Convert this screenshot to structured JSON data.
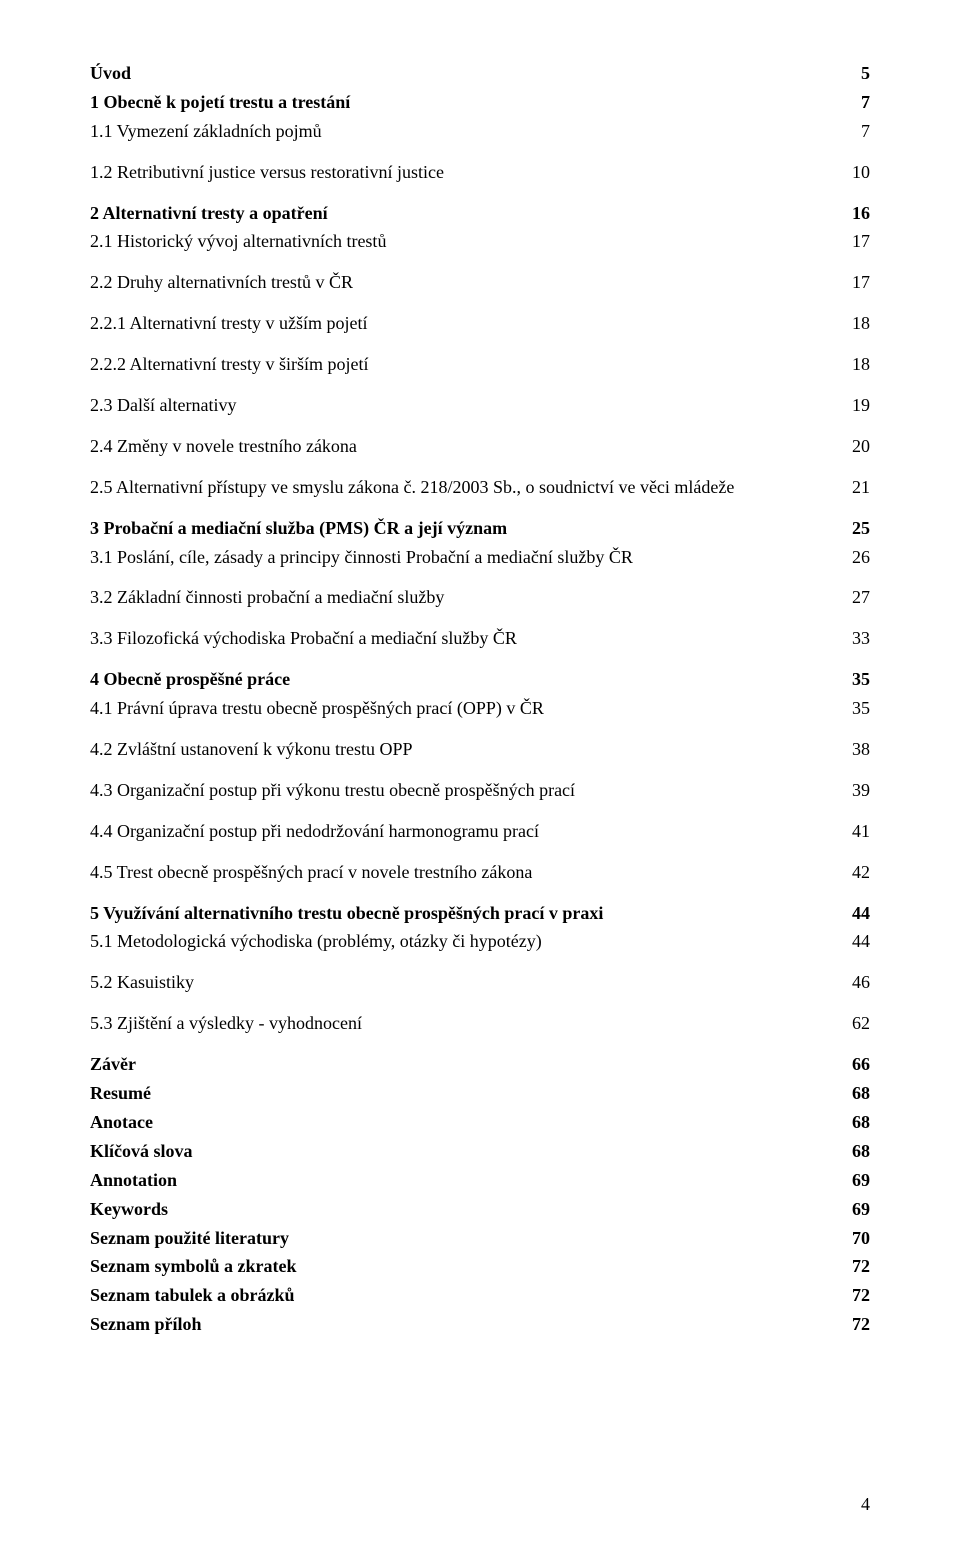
{
  "toc": [
    {
      "label": "Úvod",
      "page": "5",
      "bold": true
    },
    {
      "label": "1   Obecně k pojetí trestu a trestání",
      "page": "7",
      "bold": true
    },
    {
      "label": "1.1 Vymezení základních pojmů",
      "page": "7",
      "bold": false,
      "gapAfter": true
    },
    {
      "label": "1.2 Retributivní justice versus restorativní justice",
      "page": "10",
      "bold": false,
      "gapAfter": true
    },
    {
      "label": "2   Alternativní tresty a opatření",
      "page": "16",
      "bold": true
    },
    {
      "label": "2.1 Historický vývoj alternativních trestů",
      "page": "17",
      "bold": false,
      "gapAfter": true
    },
    {
      "label": "2.2 Druhy alternativních trestů v ČR",
      "page": "17",
      "bold": false,
      "gapAfter": true
    },
    {
      "label": "2.2.1 Alternativní tresty v užším pojetí",
      "page": "18",
      "bold": false,
      "gapAfter": true
    },
    {
      "label": "2.2.2 Alternativní tresty v širším pojetí",
      "page": "18",
      "bold": false,
      "gapAfter": true
    },
    {
      "label": "2.3 Další alternativy",
      "page": "19",
      "bold": false,
      "gapAfter": true
    },
    {
      "label": "2.4 Změny v novele trestního zákona",
      "page": "20",
      "bold": false,
      "gapAfter": true
    },
    {
      "label": "2.5 Alternativní přístupy ve smyslu zákona č. 218/2003 Sb., o soudnictví ve věci mládeže",
      "page": "21",
      "bold": false,
      "gapAfter": true
    },
    {
      "label": "3   Probační a mediační služba (PMS) ČR a její význam",
      "page": "25",
      "bold": true
    },
    {
      "label": "3.1 Poslání, cíle, zásady a principy činnosti Probační a mediační služby ČR",
      "page": "26",
      "bold": false,
      "gapAfter": true
    },
    {
      "label": "3.2 Základní činnosti probační a mediační služby",
      "page": "27",
      "bold": false,
      "gapAfter": true
    },
    {
      "label": "3.3 Filozofická východiska Probační a mediační služby ČR",
      "page": "33",
      "bold": false,
      "gapAfter": true
    },
    {
      "label": "4   Obecně prospěšné práce",
      "page": "35",
      "bold": true
    },
    {
      "label": "4.1 Právní úprava trestu obecně prospěšných prací (OPP) v ČR",
      "page": "35",
      "bold": false,
      "gapAfter": true
    },
    {
      "label": "4.2 Zvláštní ustanovení k výkonu trestu OPP",
      "page": "38",
      "bold": false,
      "gapAfter": true
    },
    {
      "label": "4.3 Organizační postup při výkonu trestu obecně prospěšných prací",
      "page": "39",
      "bold": false,
      "gapAfter": true
    },
    {
      "label": "4.4 Organizační postup při nedodržování harmonogramu prací",
      "page": "41",
      "bold": false,
      "gapAfter": true
    },
    {
      "label": "4.5 Trest obecně prospěšných prací v novele trestního zákona",
      "page": "42",
      "bold": false,
      "gapAfter": true
    },
    {
      "label": "5   Využívání alternativního trestu obecně prospěšných prací v praxi",
      "page": "44",
      "bold": true
    },
    {
      "label": "5.1 Metodologická východiska (problémy, otázky či hypotézy)",
      "page": "44",
      "bold": false,
      "gapAfter": true
    },
    {
      "label": "5.2 Kasuistiky",
      "page": "46",
      "bold": false,
      "gapAfter": true
    },
    {
      "label": "5.3 Zjištění a výsledky  - vyhodnocení",
      "page": "62",
      "bold": false,
      "gapAfter": true
    },
    {
      "label": "Závěr",
      "page": "66",
      "bold": true
    },
    {
      "label": "Resumé",
      "page": "68",
      "bold": true
    },
    {
      "label": "Anotace",
      "page": "68",
      "bold": true
    },
    {
      "label": "Klíčová slova",
      "page": "68",
      "bold": true
    },
    {
      "label": "Annotation",
      "page": "69",
      "bold": true
    },
    {
      "label": "Keywords",
      "page": "69",
      "bold": true
    },
    {
      "label": "Seznam použité literatury",
      "page": "70",
      "bold": true
    },
    {
      "label": "Seznam symbolů a zkratek",
      "page": "72",
      "bold": true
    },
    {
      "label": "Seznam tabulek a obrázků",
      "page": "72",
      "bold": true
    },
    {
      "label": "Seznam příloh",
      "page": "72",
      "bold": true
    }
  ],
  "pageNumber": "4"
}
